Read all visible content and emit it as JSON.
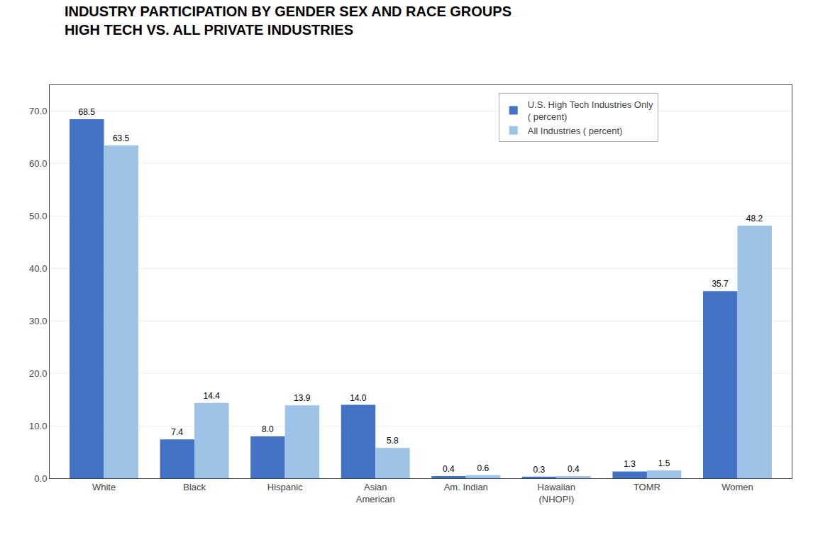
{
  "chart_data": {
    "type": "bar",
    "title": "INDUSTRY PARTICIPATION BY GENDER SEX AND RACE GROUPS",
    "subtitle": "HIGH TECH VS. ALL PRIVATE INDUSTRIES",
    "categories": [
      "White",
      "Black",
      "Hispanic",
      "Asian\nAmerican",
      "Am. Indian",
      "Hawaiian\n(NHOPI)",
      "TOMR",
      "Women"
    ],
    "series": [
      {
        "name": "U.S. High Tech Industries Only\n( percent)",
        "color": "#4472C4",
        "values": [
          68.5,
          7.4,
          8.0,
          14.0,
          0.4,
          0.3,
          1.3,
          35.7
        ],
        "value_labels": [
          "68.5",
          "7.4",
          "8.0",
          "14.0",
          "0.4",
          "0.3",
          "1.3",
          "35.7"
        ]
      },
      {
        "name": "All Industries ( percent)",
        "color": "#9DC3E6",
        "values": [
          63.5,
          14.4,
          13.9,
          5.8,
          0.6,
          0.4,
          1.5,
          48.2
        ],
        "value_labels": [
          "63.5",
          "14.4",
          "13.9",
          "5.8",
          "0.6",
          "0.4",
          "1.5",
          "48.2"
        ]
      }
    ],
    "ylim": [
      0,
      75
    ],
    "yticks": [
      {
        "value": 0,
        "label": "0.0"
      },
      {
        "value": 10,
        "label": "10.0"
      },
      {
        "value": 20,
        "label": "20.0"
      },
      {
        "value": 30,
        "label": "30.0"
      },
      {
        "value": 40,
        "label": "40.0"
      },
      {
        "value": 50,
        "label": "50.0"
      },
      {
        "value": 60,
        "label": "60.0"
      },
      {
        "value": 70,
        "label": "70.0"
      }
    ],
    "grid": true,
    "legend": "upper right",
    "data_labels": true
  }
}
